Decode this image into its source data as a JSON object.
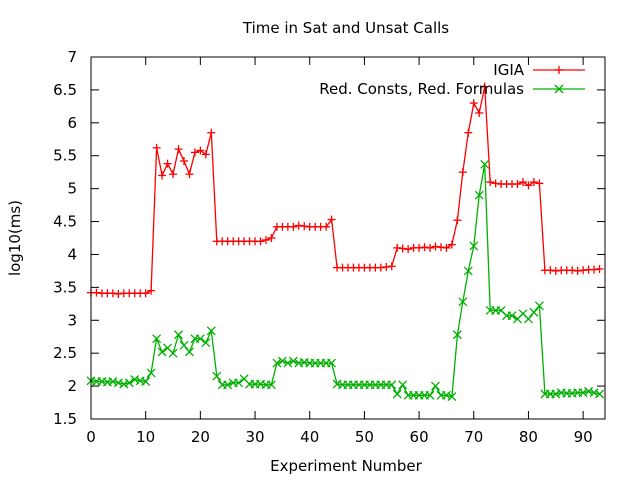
{
  "chart_data": {
    "type": "line",
    "title": "Time in Sat and Unsat Calls",
    "xlabel": "Experiment Number",
    "ylabel": "log10(ms)",
    "xlim": [
      0,
      94
    ],
    "ylim": [
      1.5,
      7
    ],
    "xticks": [
      0,
      10,
      20,
      30,
      40,
      50,
      60,
      70,
      80,
      90
    ],
    "yticks": [
      1.5,
      2,
      2.5,
      3,
      3.5,
      4,
      4.5,
      5,
      5.5,
      6,
      6.5,
      7
    ],
    "grid": false,
    "legend_position": "top-right",
    "series": [
      {
        "name": "IGIA",
        "color": "#ff0000",
        "marker": "plus",
        "x": [
          0,
          1,
          2,
          3,
          4,
          5,
          6,
          7,
          8,
          9,
          10,
          11,
          12,
          13,
          14,
          15,
          16,
          17,
          18,
          19,
          20,
          21,
          22,
          23,
          24,
          25,
          26,
          27,
          28,
          29,
          30,
          31,
          32,
          33,
          34,
          35,
          36,
          37,
          38,
          39,
          40,
          41,
          42,
          43,
          44,
          45,
          46,
          47,
          48,
          49,
          50,
          51,
          52,
          53,
          54,
          55,
          56,
          57,
          58,
          59,
          60,
          61,
          62,
          63,
          64,
          65,
          66,
          67,
          68,
          69,
          70,
          71,
          72,
          73,
          74,
          75,
          76,
          77,
          78,
          79,
          80,
          81,
          82,
          83,
          84,
          85,
          86,
          87,
          88,
          89,
          90,
          91,
          92,
          93
        ],
        "y": [
          3.42,
          3.42,
          3.41,
          3.41,
          3.41,
          3.4,
          3.41,
          3.41,
          3.41,
          3.41,
          3.41,
          3.45,
          5.62,
          5.2,
          5.38,
          5.22,
          5.6,
          5.42,
          5.22,
          5.55,
          5.58,
          5.52,
          5.85,
          4.2,
          4.2,
          4.2,
          4.2,
          4.2,
          4.2,
          4.2,
          4.2,
          4.2,
          4.22,
          4.25,
          4.42,
          4.42,
          4.42,
          4.42,
          4.44,
          4.43,
          4.42,
          4.42,
          4.42,
          4.42,
          4.53,
          3.8,
          3.8,
          3.8,
          3.8,
          3.8,
          3.8,
          3.8,
          3.8,
          3.8,
          3.81,
          3.82,
          4.1,
          4.09,
          4.08,
          4.1,
          4.1,
          4.11,
          4.1,
          4.12,
          4.11,
          4.1,
          4.15,
          4.52,
          5.25,
          5.85,
          6.3,
          6.15,
          6.55,
          5.1,
          5.08,
          5.07,
          5.07,
          5.07,
          5.07,
          5.1,
          5.05,
          5.1,
          5.08,
          3.76,
          3.76,
          3.75,
          3.76,
          3.76,
          3.76,
          3.75,
          3.76,
          3.77,
          3.77,
          3.78
        ]
      },
      {
        "name": "Red. Consts, Red. Formulas",
        "color": "#00b000",
        "marker": "cross",
        "x": [
          0,
          1,
          2,
          3,
          4,
          5,
          6,
          7,
          8,
          9,
          10,
          11,
          12,
          13,
          14,
          15,
          16,
          17,
          18,
          19,
          20,
          21,
          22,
          23,
          24,
          25,
          26,
          27,
          28,
          29,
          30,
          31,
          32,
          33,
          34,
          35,
          36,
          37,
          38,
          39,
          40,
          41,
          42,
          43,
          44,
          45,
          46,
          47,
          48,
          49,
          50,
          51,
          52,
          53,
          54,
          55,
          56,
          57,
          58,
          59,
          60,
          61,
          62,
          63,
          64,
          65,
          66,
          67,
          68,
          69,
          70,
          71,
          72,
          73,
          74,
          75,
          76,
          77,
          78,
          79,
          80,
          81,
          82,
          83,
          84,
          85,
          86,
          87,
          88,
          89,
          90,
          91,
          92,
          93
        ],
        "y": [
          2.08,
          2.07,
          2.07,
          2.06,
          2.07,
          2.05,
          2.03,
          2.05,
          2.1,
          2.08,
          2.07,
          2.2,
          2.72,
          2.52,
          2.58,
          2.5,
          2.78,
          2.62,
          2.52,
          2.72,
          2.72,
          2.66,
          2.84,
          2.15,
          2.02,
          2.02,
          2.05,
          2.05,
          2.11,
          2.03,
          2.03,
          2.03,
          2.02,
          2.02,
          2.35,
          2.38,
          2.35,
          2.38,
          2.35,
          2.36,
          2.35,
          2.35,
          2.35,
          2.35,
          2.35,
          2.03,
          2.02,
          2.02,
          2.02,
          2.02,
          2.02,
          2.02,
          2.02,
          2.02,
          2.02,
          2.02,
          1.88,
          2.02,
          1.86,
          1.86,
          1.86,
          1.86,
          1.86,
          2.0,
          1.86,
          1.86,
          1.84,
          2.78,
          3.28,
          3.75,
          4.13,
          4.9,
          5.37,
          3.15,
          3.15,
          3.15,
          3.07,
          3.07,
          3.02,
          3.1,
          3.02,
          3.12,
          3.22,
          1.88,
          1.88,
          1.88,
          1.9,
          1.89,
          1.89,
          1.9,
          1.9,
          1.92,
          1.9,
          1.88
        ]
      }
    ]
  }
}
